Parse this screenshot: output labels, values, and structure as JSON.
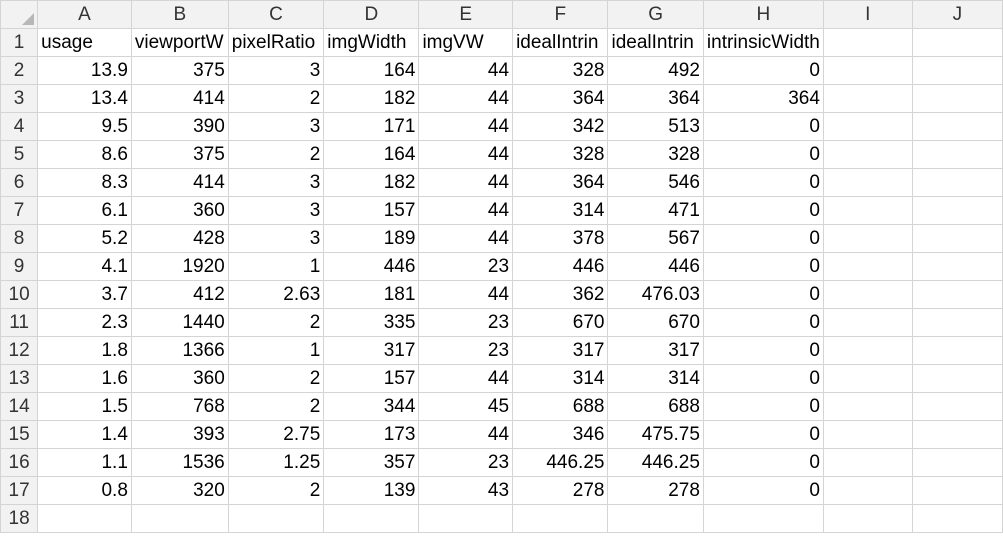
{
  "columns": [
    "A",
    "B",
    "C",
    "D",
    "E",
    "F",
    "G",
    "H",
    "I",
    "J"
  ],
  "rows": [
    {
      "n": "1",
      "cells": [
        "usage",
        "viewportW",
        "pixelRatio",
        "imgWidth",
        "imgVW",
        "idealIntrin",
        "idealIntrin",
        "intrinsicWidth",
        "",
        ""
      ]
    },
    {
      "n": "2",
      "cells": [
        "13.9",
        "375",
        "3",
        "164",
        "44",
        "328",
        "492",
        "0",
        "",
        ""
      ]
    },
    {
      "n": "3",
      "cells": [
        "13.4",
        "414",
        "2",
        "182",
        "44",
        "364",
        "364",
        "364",
        "",
        ""
      ]
    },
    {
      "n": "4",
      "cells": [
        "9.5",
        "390",
        "3",
        "171",
        "44",
        "342",
        "513",
        "0",
        "",
        ""
      ]
    },
    {
      "n": "5",
      "cells": [
        "8.6",
        "375",
        "2",
        "164",
        "44",
        "328",
        "328",
        "0",
        "",
        ""
      ]
    },
    {
      "n": "6",
      "cells": [
        "8.3",
        "414",
        "3",
        "182",
        "44",
        "364",
        "546",
        "0",
        "",
        ""
      ]
    },
    {
      "n": "7",
      "cells": [
        "6.1",
        "360",
        "3",
        "157",
        "44",
        "314",
        "471",
        "0",
        "",
        ""
      ]
    },
    {
      "n": "8",
      "cells": [
        "5.2",
        "428",
        "3",
        "189",
        "44",
        "378",
        "567",
        "0",
        "",
        ""
      ]
    },
    {
      "n": "9",
      "cells": [
        "4.1",
        "1920",
        "1",
        "446",
        "23",
        "446",
        "446",
        "0",
        "",
        ""
      ]
    },
    {
      "n": "10",
      "cells": [
        "3.7",
        "412",
        "2.63",
        "181",
        "44",
        "362",
        "476.03",
        "0",
        "",
        ""
      ]
    },
    {
      "n": "11",
      "cells": [
        "2.3",
        "1440",
        "2",
        "335",
        "23",
        "670",
        "670",
        "0",
        "",
        ""
      ]
    },
    {
      "n": "12",
      "cells": [
        "1.8",
        "1366",
        "1",
        "317",
        "23",
        "317",
        "317",
        "0",
        "",
        ""
      ]
    },
    {
      "n": "13",
      "cells": [
        "1.6",
        "360",
        "2",
        "157",
        "44",
        "314",
        "314",
        "0",
        "",
        ""
      ]
    },
    {
      "n": "14",
      "cells": [
        "1.5",
        "768",
        "2",
        "344",
        "45",
        "688",
        "688",
        "0",
        "",
        ""
      ]
    },
    {
      "n": "15",
      "cells": [
        "1.4",
        "393",
        "2.75",
        "173",
        "44",
        "346",
        "475.75",
        "0",
        "",
        ""
      ]
    },
    {
      "n": "16",
      "cells": [
        "1.1",
        "1536",
        "1.25",
        "357",
        "23",
        "446.25",
        "446.25",
        "0",
        "",
        ""
      ]
    },
    {
      "n": "17",
      "cells": [
        "0.8",
        "320",
        "2",
        "139",
        "43",
        "278",
        "278",
        "0",
        "",
        ""
      ]
    },
    {
      "n": "18",
      "cells": [
        "",
        "",
        "",
        "",
        "",
        "",
        "",
        "",
        "",
        ""
      ]
    }
  ]
}
